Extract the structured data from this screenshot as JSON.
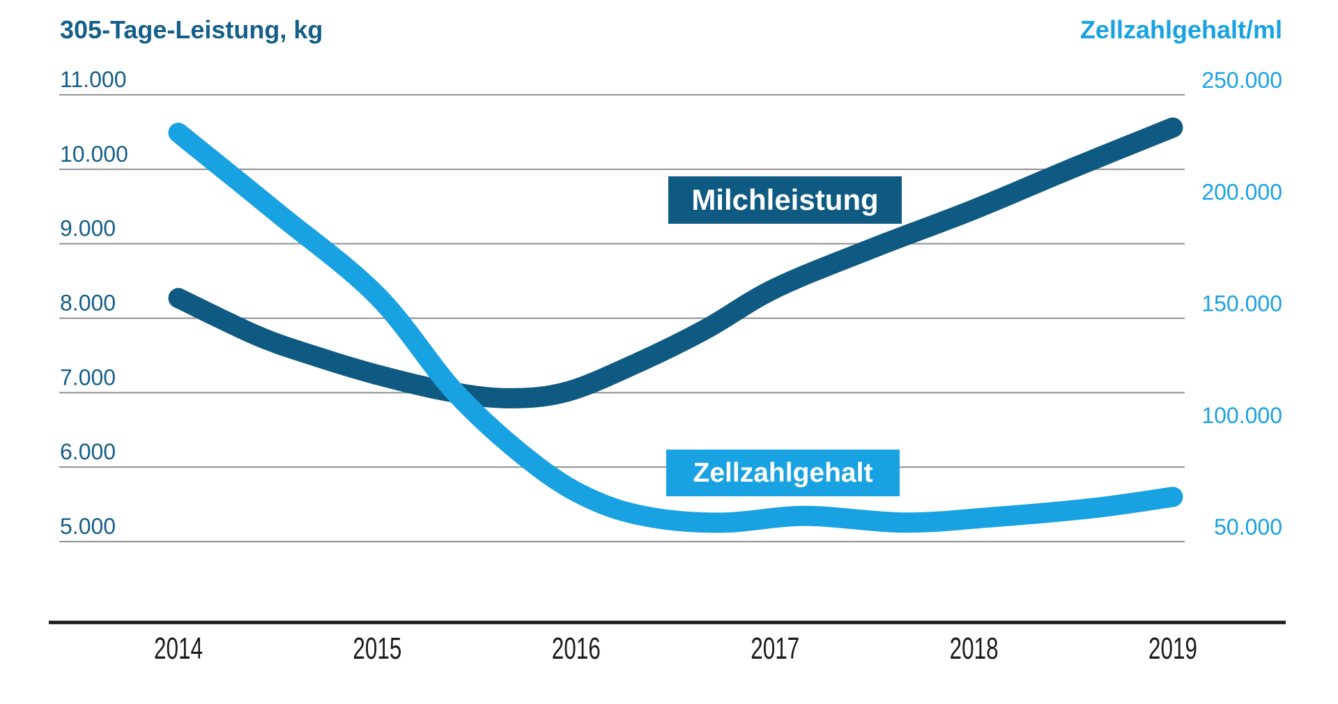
{
  "chart_data": {
    "type": "line",
    "title": "",
    "left_axis": {
      "title": "305-Tage-Leistung, kg",
      "color": "#155E89",
      "tick_labels": [
        "11.000",
        "10.000",
        "9.000",
        "8.000",
        "7.000",
        "6.000",
        "5.000"
      ],
      "tick_values": [
        11000,
        10000,
        9000,
        8000,
        7000,
        6000,
        5000
      ],
      "range": [
        5000,
        11000
      ]
    },
    "right_axis": {
      "title": "Zellzahlgehalt/ml",
      "color": "#18A2E2",
      "tick_labels": [
        "250.000",
        "200.000",
        "150.000",
        "100.000",
        "50.000"
      ],
      "tick_values": [
        250000,
        200000,
        150000,
        100000,
        50000
      ],
      "range": [
        50000,
        250000
      ]
    },
    "x_axis": {
      "categories": [
        "2014",
        "2015",
        "2016",
        "2017",
        "2018",
        "2019"
      ],
      "values": [
        2014,
        2015,
        2016,
        2017,
        2018,
        2019
      ],
      "color": "#1A1A1A"
    },
    "grid": {
      "on": true,
      "color": "#8F8F8F"
    },
    "legend_position": "inline-boxes",
    "series": [
      {
        "name": "Milchleistung",
        "axis": "left",
        "color": "#0E5A83",
        "values": [
          8270,
          7240,
          7100,
          8400,
          9460,
          10560
        ],
        "curve_points": [
          [
            2014.0,
            8270
          ],
          [
            2014.4,
            7760
          ],
          [
            2014.7,
            7480
          ],
          [
            2015.0,
            7240
          ],
          [
            2015.35,
            7020
          ],
          [
            2015.65,
            6925
          ],
          [
            2015.95,
            7010
          ],
          [
            2016.3,
            7390
          ],
          [
            2016.65,
            7850
          ],
          [
            2017.0,
            8400
          ],
          [
            2017.5,
            8950
          ],
          [
            2018.0,
            9460
          ],
          [
            2018.5,
            10020
          ],
          [
            2019.0,
            10560
          ]
        ],
        "label_box": {
          "text": "Milchleistung",
          "bg": "#0E5A83",
          "text_color": "#FFFFFF"
        }
      },
      {
        "name": "Zellzahlgehalt",
        "axis": "right",
        "color": "#18A2E2",
        "values": [
          233000,
          160000,
          74000,
          61000,
          61000,
          70000
        ],
        "curve_points": [
          [
            2014.0,
            233000
          ],
          [
            2014.5,
            197000
          ],
          [
            2015.0,
            160000
          ],
          [
            2015.4,
            116000
          ],
          [
            2015.8,
            84000
          ],
          [
            2016.1,
            68000
          ],
          [
            2016.4,
            60500
          ],
          [
            2016.75,
            58500
          ],
          [
            2017.15,
            61500
          ],
          [
            2017.65,
            58500
          ],
          [
            2018.1,
            61000
          ],
          [
            2018.6,
            65000
          ],
          [
            2019.0,
            70000
          ]
        ],
        "label_box": {
          "text": "Zellzahlgehalt",
          "bg": "#18A2E2",
          "text_color": "#FFFFFF"
        }
      }
    ]
  }
}
